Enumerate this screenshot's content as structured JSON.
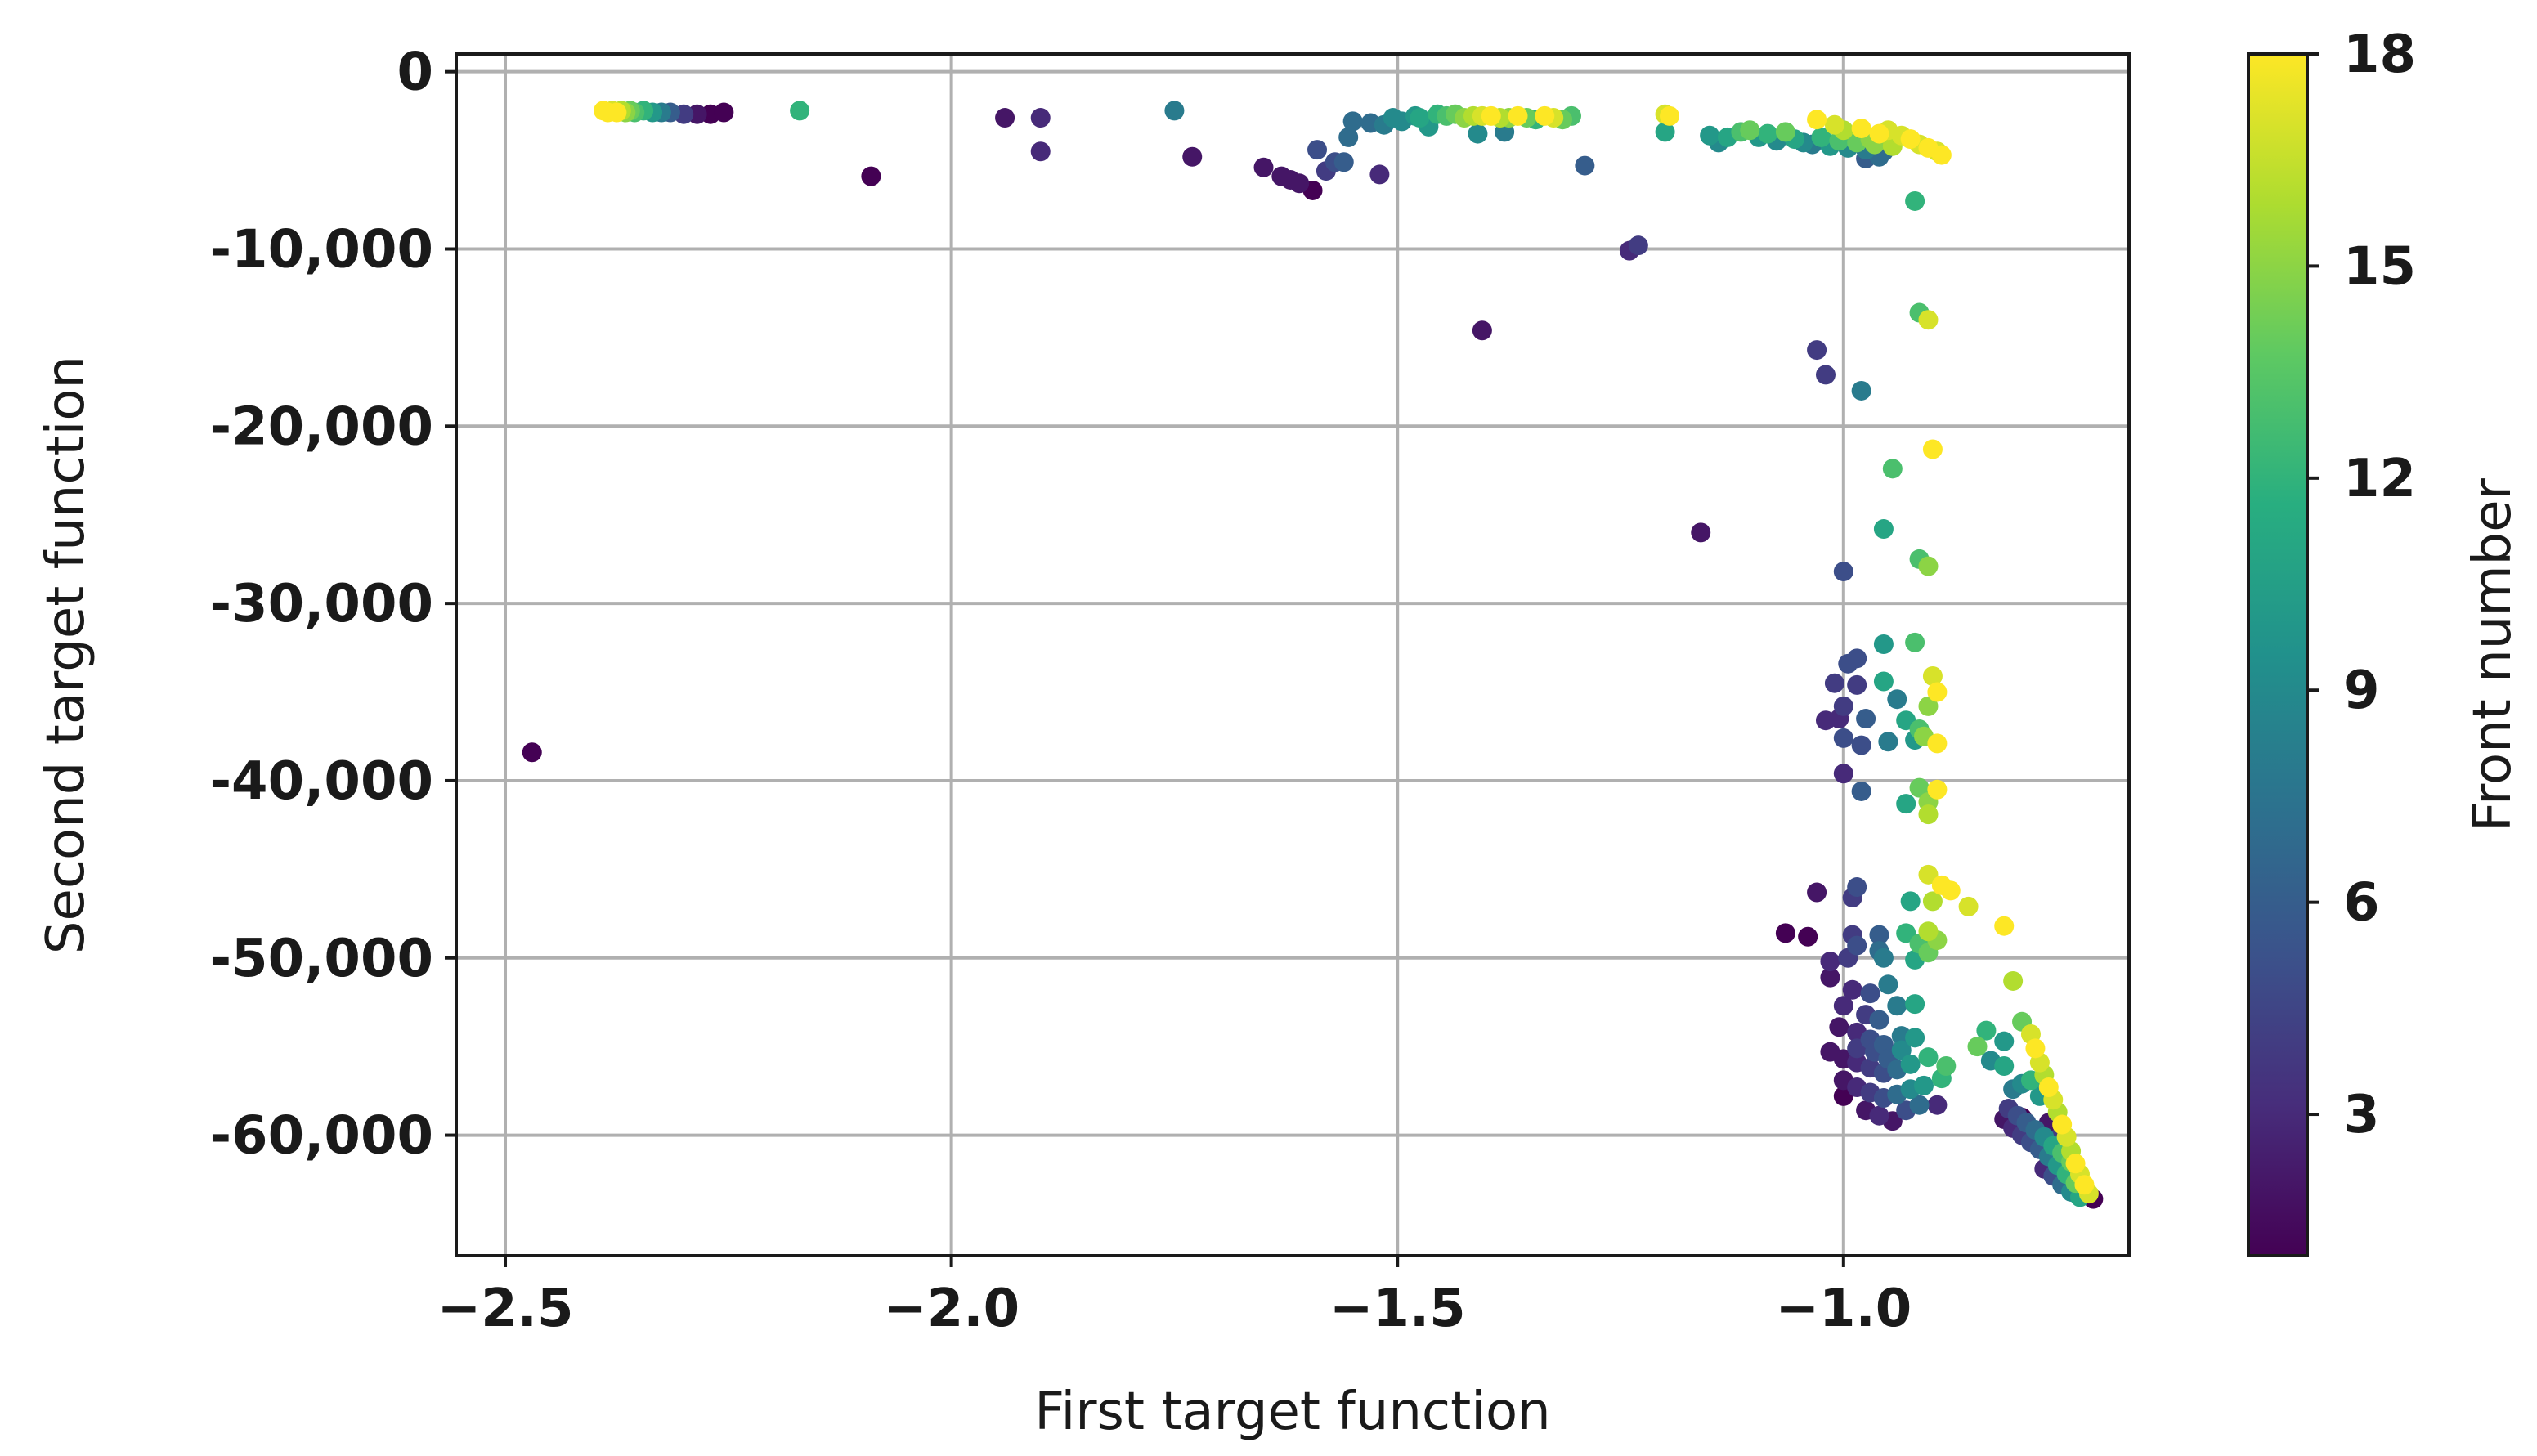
{
  "chart_data": {
    "type": "scatter",
    "title": "",
    "xlabel": "First target function",
    "ylabel": "Second target function",
    "xlim": [
      -2.555,
      -0.68
    ],
    "ylim": [
      -66800,
      1000
    ],
    "xticks": [
      -2.5,
      -2.0,
      -1.5,
      -1.0
    ],
    "xtick_labels": [
      "−2.5",
      "−2.0",
      "−1.5",
      "−1.0"
    ],
    "yticks": [
      0,
      -10000,
      -20000,
      -30000,
      -40000,
      -50000,
      -60000
    ],
    "ytick_labels": [
      "0",
      "-10,000",
      "-20,000",
      "-30,000",
      "-40,000",
      "-50,000",
      "-60,000"
    ],
    "grid": true,
    "colorbar": {
      "label": "Front number",
      "min": 1,
      "max": 18,
      "ticks": [
        3,
        6,
        9,
        12,
        15,
        18
      ],
      "tick_labels": [
        "3",
        "6",
        "9",
        "12",
        "15",
        "18"
      ],
      "colormap": [
        "#440154",
        "#472d7b",
        "#3b528b",
        "#2c728e",
        "#21918c",
        "#28ae80",
        "#5ec962",
        "#addc30",
        "#fde725"
      ]
    },
    "points": [
      [
        -2.47,
        -38400,
        1
      ],
      [
        -2.39,
        -2200,
        18
      ],
      [
        -2.385,
        -2300,
        18
      ],
      [
        -2.38,
        -2200,
        17
      ],
      [
        -2.375,
        -2300,
        18
      ],
      [
        -2.37,
        -2200,
        16
      ],
      [
        -2.365,
        -2300,
        15
      ],
      [
        -2.36,
        -2200,
        14
      ],
      [
        -2.355,
        -2300,
        13
      ],
      [
        -2.345,
        -2200,
        12
      ],
      [
        -2.335,
        -2300,
        10
      ],
      [
        -2.325,
        -2300,
        8
      ],
      [
        -2.315,
        -2300,
        6
      ],
      [
        -2.3,
        -2400,
        4
      ],
      [
        -2.285,
        -2400,
        2
      ],
      [
        -2.27,
        -2400,
        1
      ],
      [
        -2.255,
        -2300,
        1
      ],
      [
        -2.17,
        -2200,
        12
      ],
      [
        -2.09,
        -5900,
        1
      ],
      [
        -1.94,
        -2600,
        2
      ],
      [
        -1.9,
        -2600,
        3
      ],
      [
        -1.9,
        -4500,
        3
      ],
      [
        -1.75,
        -2200,
        8
      ],
      [
        -1.73,
        -4800,
        2
      ],
      [
        -1.65,
        -5400,
        2
      ],
      [
        -1.63,
        -5900,
        2
      ],
      [
        -1.62,
        -6100,
        2
      ],
      [
        -1.61,
        -6300,
        2
      ],
      [
        -1.595,
        -6700,
        1
      ],
      [
        -1.59,
        -4400,
        5
      ],
      [
        -1.58,
        -5600,
        4
      ],
      [
        -1.57,
        -5100,
        5
      ],
      [
        -1.56,
        -5100,
        6
      ],
      [
        -1.555,
        -3700,
        7
      ],
      [
        -1.55,
        -2800,
        7
      ],
      [
        -1.53,
        -2900,
        7
      ],
      [
        -1.52,
        -5800,
        3
      ],
      [
        -1.515,
        -3000,
        8
      ],
      [
        -1.505,
        -2600,
        9
      ],
      [
        -1.495,
        -2800,
        9
      ],
      [
        -1.48,
        -2500,
        10
      ],
      [
        -1.475,
        -2600,
        11
      ],
      [
        -1.465,
        -3100,
        10
      ],
      [
        -1.455,
        -2400,
        12
      ],
      [
        -1.445,
        -2500,
        13
      ],
      [
        -1.435,
        -2400,
        14
      ],
      [
        -1.425,
        -2600,
        15
      ],
      [
        -1.415,
        -2500,
        16
      ],
      [
        -1.405,
        -2500,
        17
      ],
      [
        -1.395,
        -2500,
        18
      ],
      [
        -1.385,
        -2600,
        16
      ],
      [
        -1.375,
        -2600,
        15
      ],
      [
        -1.365,
        -2500,
        18
      ],
      [
        -1.41,
        -3500,
        9
      ],
      [
        -1.405,
        -14600,
        2
      ],
      [
        -1.38,
        -3400,
        8
      ],
      [
        -1.355,
        -2600,
        14
      ],
      [
        -1.345,
        -2700,
        12
      ],
      [
        -1.335,
        -2500,
        18
      ],
      [
        -1.325,
        -2600,
        17
      ],
      [
        -1.315,
        -2700,
        14
      ],
      [
        -1.305,
        -2500,
        13
      ],
      [
        -1.29,
        -5300,
        6
      ],
      [
        -1.24,
        -10100,
        3
      ],
      [
        -1.23,
        -9800,
        4
      ],
      [
        -1.2,
        -2400,
        17
      ],
      [
        -1.195,
        -2500,
        18
      ],
      [
        -1.2,
        -3400,
        11
      ],
      [
        -1.16,
        -26000,
        2
      ],
      [
        -1.15,
        -3600,
        10
      ],
      [
        -1.14,
        -4000,
        9
      ],
      [
        -1.13,
        -3700,
        11
      ],
      [
        -1.115,
        -3400,
        13
      ],
      [
        -1.105,
        -3300,
        14
      ],
      [
        -1.095,
        -3700,
        10
      ],
      [
        -1.085,
        -3500,
        12
      ],
      [
        -1.075,
        -3900,
        9
      ],
      [
        -1.065,
        -3400,
        14
      ],
      [
        -1.055,
        -3800,
        11
      ],
      [
        -1.045,
        -4000,
        9
      ],
      [
        -1.035,
        -4100,
        8
      ],
      [
        -1.025,
        -3700,
        12
      ],
      [
        -1.015,
        -4200,
        10
      ],
      [
        -1.005,
        -3900,
        13
      ],
      [
        -0.995,
        -4300,
        9
      ],
      [
        -0.985,
        -4000,
        14
      ],
      [
        -0.975,
        -4400,
        8
      ],
      [
        -0.965,
        -4100,
        15
      ],
      [
        -0.955,
        -4500,
        7
      ],
      [
        -0.945,
        -4200,
        16
      ],
      [
        -0.935,
        -3600,
        17
      ],
      [
        -0.925,
        -3800,
        18
      ],
      [
        -0.915,
        -4100,
        17
      ],
      [
        -0.905,
        -4300,
        18
      ],
      [
        -0.895,
        -4500,
        17
      ],
      [
        -0.89,
        -4700,
        18
      ],
      [
        -1.03,
        -2700,
        18
      ],
      [
        -1.01,
        -3000,
        17
      ],
      [
        -0.98,
        -3200,
        18
      ],
      [
        -0.96,
        -3500,
        18
      ],
      [
        -0.95,
        -3300,
        17
      ],
      [
        -0.97,
        -3800,
        15
      ],
      [
        -1.0,
        -3300,
        16
      ],
      [
        -0.96,
        -4800,
        7
      ],
      [
        -0.975,
        -4900,
        6
      ],
      [
        -0.92,
        -7300,
        12
      ],
      [
        -0.915,
        -13600,
        13
      ],
      [
        -0.905,
        -14000,
        17
      ],
      [
        -1.03,
        -15700,
        4
      ],
      [
        -1.02,
        -17100,
        4
      ],
      [
        -0.98,
        -18000,
        8
      ],
      [
        -0.9,
        -21300,
        18
      ],
      [
        -0.945,
        -22400,
        13
      ],
      [
        -0.955,
        -25800,
        11
      ],
      [
        -0.915,
        -27500,
        13
      ],
      [
        -0.905,
        -27900,
        15
      ],
      [
        -1.0,
        -28200,
        5
      ],
      [
        -0.92,
        -32200,
        13
      ],
      [
        -0.955,
        -32300,
        10
      ],
      [
        -0.985,
        -33100,
        5
      ],
      [
        -0.995,
        -33400,
        5
      ],
      [
        -1.01,
        -34500,
        4
      ],
      [
        -0.985,
        -34600,
        4
      ],
      [
        -0.955,
        -34400,
        11
      ],
      [
        -0.9,
        -34100,
        17
      ],
      [
        -0.895,
        -35000,
        18
      ],
      [
        -0.905,
        -35800,
        15
      ],
      [
        -0.94,
        -35400,
        8
      ],
      [
        -1.0,
        -35800,
        4
      ],
      [
        -1.02,
        -36600,
        3
      ],
      [
        -1.005,
        -36500,
        3
      ],
      [
        -0.975,
        -36500,
        6
      ],
      [
        -0.93,
        -36600,
        11
      ],
      [
        -0.915,
        -37100,
        13
      ],
      [
        -0.91,
        -37500,
        15
      ],
      [
        -0.92,
        -37700,
        10
      ],
      [
        -0.95,
        -37800,
        8
      ],
      [
        -0.98,
        -38000,
        5
      ],
      [
        -1.0,
        -37600,
        5
      ],
      [
        -0.895,
        -37900,
        18
      ],
      [
        -1.0,
        -39600,
        3
      ],
      [
        -0.98,
        -40600,
        6
      ],
      [
        -0.915,
        -40400,
        14
      ],
      [
        -0.905,
        -41200,
        15
      ],
      [
        -0.93,
        -41300,
        11
      ],
      [
        -0.905,
        -41900,
        16
      ],
      [
        -0.895,
        -40500,
        18
      ],
      [
        -0.905,
        -45300,
        17
      ],
      [
        -0.89,
        -45900,
        18
      ],
      [
        -0.88,
        -46200,
        18
      ],
      [
        -0.9,
        -46800,
        16
      ],
      [
        -0.925,
        -46800,
        11
      ],
      [
        -0.985,
        -46000,
        5
      ],
      [
        -1.03,
        -46300,
        2
      ],
      [
        -0.99,
        -46600,
        4
      ],
      [
        -0.86,
        -47100,
        17
      ],
      [
        -0.82,
        -48200,
        18
      ],
      [
        -1.065,
        -48600,
        1
      ],
      [
        -1.04,
        -48800,
        1
      ],
      [
        -0.99,
        -48700,
        4
      ],
      [
        -0.96,
        -48700,
        6
      ],
      [
        -0.93,
        -48600,
        12
      ],
      [
        -0.905,
        -48500,
        16
      ],
      [
        -0.895,
        -49000,
        15
      ],
      [
        -0.915,
        -49200,
        13
      ],
      [
        -0.96,
        -49600,
        7
      ],
      [
        -0.985,
        -49300,
        5
      ],
      [
        -0.995,
        -50000,
        4
      ],
      [
        -1.015,
        -50200,
        3
      ],
      [
        -0.955,
        -50000,
        8
      ],
      [
        -0.92,
        -50100,
        11
      ],
      [
        -0.905,
        -49700,
        14
      ],
      [
        -0.81,
        -51300,
        16
      ],
      [
        -1.015,
        -51100,
        2
      ],
      [
        -0.99,
        -51800,
        3
      ],
      [
        -0.97,
        -52000,
        5
      ],
      [
        -0.95,
        -51500,
        8
      ],
      [
        -1.0,
        -52700,
        3
      ],
      [
        -0.975,
        -53200,
        4
      ],
      [
        -0.96,
        -53500,
        6
      ],
      [
        -0.94,
        -52700,
        8
      ],
      [
        -0.92,
        -52600,
        11
      ],
      [
        -1.005,
        -53900,
        2
      ],
      [
        -0.985,
        -54200,
        3
      ],
      [
        -0.97,
        -54600,
        5
      ],
      [
        -0.955,
        -54900,
        6
      ],
      [
        -0.935,
        -54400,
        8
      ],
      [
        -1.015,
        -55300,
        2
      ],
      [
        -1.0,
        -55700,
        2
      ],
      [
        -0.985,
        -55900,
        3
      ],
      [
        -0.97,
        -56200,
        4
      ],
      [
        -0.955,
        -56500,
        5
      ],
      [
        -0.94,
        -56300,
        7
      ],
      [
        -0.925,
        -56000,
        10
      ],
      [
        -0.905,
        -55600,
        12
      ],
      [
        -0.885,
        -56100,
        13
      ],
      [
        -1.0,
        -56900,
        2
      ],
      [
        -0.985,
        -57300,
        3
      ],
      [
        -0.97,
        -57600,
        4
      ],
      [
        -0.955,
        -57900,
        5
      ],
      [
        -0.94,
        -57700,
        7
      ],
      [
        -0.925,
        -57400,
        9
      ],
      [
        -0.91,
        -57200,
        10
      ],
      [
        -0.89,
        -56800,
        12
      ],
      [
        -1.0,
        -57800,
        1
      ],
      [
        -0.975,
        -58600,
        2
      ],
      [
        -0.96,
        -58900,
        3
      ],
      [
        -0.945,
        -59200,
        2
      ],
      [
        -0.93,
        -58600,
        5
      ],
      [
        -0.915,
        -58300,
        7
      ],
      [
        -0.895,
        -58300,
        3
      ],
      [
        -0.985,
        -55100,
        4
      ],
      [
        -0.965,
        -55300,
        5
      ],
      [
        -0.95,
        -55700,
        6
      ],
      [
        -0.935,
        -55200,
        9
      ],
      [
        -0.92,
        -54500,
        10
      ],
      [
        -0.84,
        -54100,
        12
      ],
      [
        -0.82,
        -54700,
        10
      ],
      [
        -0.85,
        -55000,
        14
      ],
      [
        -0.835,
        -55800,
        9
      ],
      [
        -0.82,
        -56100,
        11
      ],
      [
        -0.8,
        -53600,
        14
      ],
      [
        -0.79,
        -54300,
        17
      ],
      [
        -0.785,
        -55100,
        18
      ],
      [
        -0.78,
        -55900,
        17
      ],
      [
        -0.775,
        -56600,
        16
      ],
      [
        -0.77,
        -57300,
        18
      ],
      [
        -0.765,
        -58000,
        17
      ],
      [
        -0.76,
        -58700,
        16
      ],
      [
        -0.755,
        -59400,
        18
      ],
      [
        -0.75,
        -60100,
        17
      ],
      [
        -0.745,
        -60900,
        16
      ],
      [
        -0.74,
        -61600,
        18
      ],
      [
        -0.735,
        -62200,
        17
      ],
      [
        -0.73,
        -62800,
        18
      ],
      [
        -0.725,
        -63300,
        17
      ],
      [
        -0.72,
        -63600,
        1
      ],
      [
        -0.81,
        -57400,
        8
      ],
      [
        -0.8,
        -57100,
        9
      ],
      [
        -0.79,
        -56900,
        12
      ],
      [
        -0.78,
        -57800,
        10
      ],
      [
        -0.815,
        -58500,
        4
      ],
      [
        -0.805,
        -58900,
        5
      ],
      [
        -0.795,
        -59300,
        6
      ],
      [
        -0.785,
        -59700,
        7
      ],
      [
        -0.775,
        -60100,
        9
      ],
      [
        -0.765,
        -60600,
        11
      ],
      [
        -0.755,
        -61000,
        13
      ],
      [
        -0.745,
        -61500,
        14
      ],
      [
        -0.82,
        -59100,
        2
      ],
      [
        -0.81,
        -59600,
        3
      ],
      [
        -0.8,
        -60000,
        4
      ],
      [
        -0.79,
        -60400,
        5
      ],
      [
        -0.78,
        -60800,
        6
      ],
      [
        -0.77,
        -61200,
        8
      ],
      [
        -0.76,
        -61700,
        10
      ],
      [
        -0.75,
        -62200,
        12
      ],
      [
        -0.74,
        -62700,
        14
      ],
      [
        -0.8,
        -59000,
        1
      ],
      [
        -0.775,
        -61900,
        3
      ],
      [
        -0.765,
        -62300,
        5
      ],
      [
        -0.755,
        -62800,
        7
      ],
      [
        -0.745,
        -63200,
        9
      ],
      [
        -0.735,
        -63500,
        11
      ],
      [
        -0.77,
        -59300,
        2
      ],
      [
        -0.76,
        -60200,
        4
      ]
    ]
  }
}
